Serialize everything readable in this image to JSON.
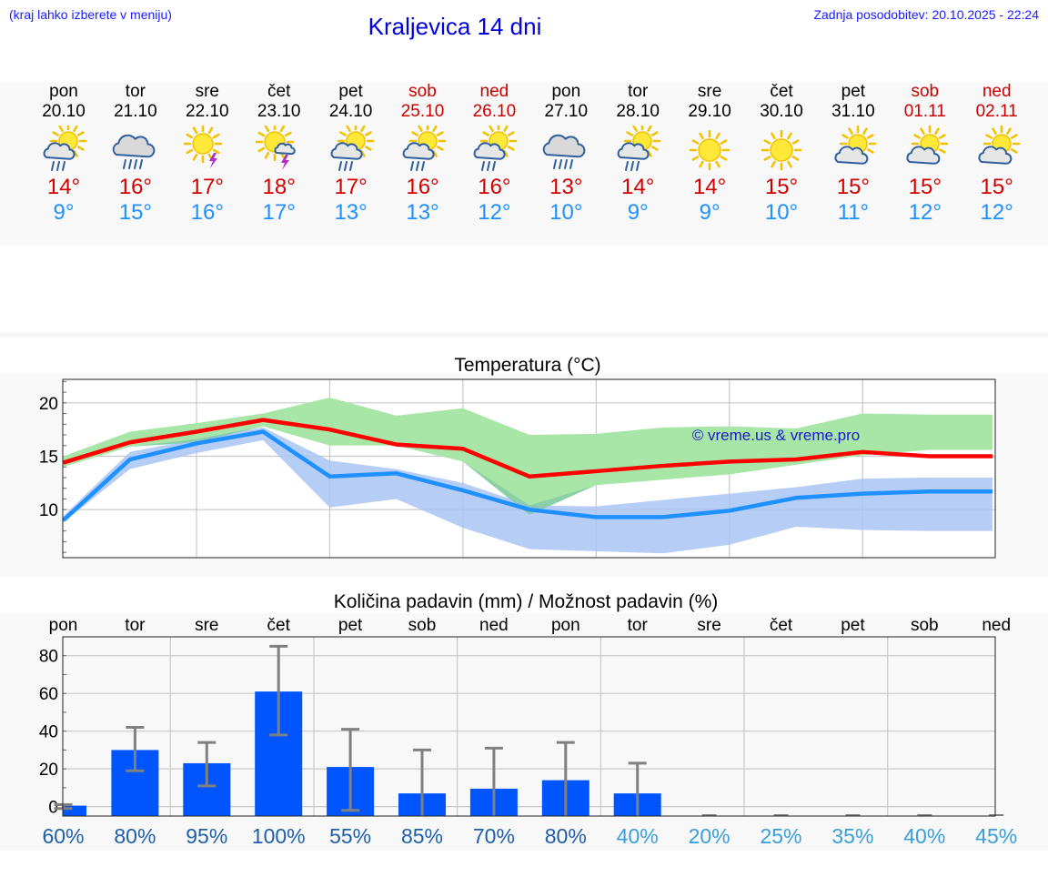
{
  "header": {
    "hint": "(kraj lahko izberete v meniju)",
    "title": "Kraljevica 14 dni",
    "updated": "Zadnja posodobitev: 20.10.2025 - 22:24"
  },
  "colors": {
    "max_line": "#ff0000",
    "min_line": "#1e90ff",
    "max_band": "#a8e6a8",
    "min_band": "#a9c4f5",
    "overlap_band": "#7fc8a5",
    "precip_bar": "#0055ff",
    "error_bar": "#808080",
    "prob_high": "#1e5faa",
    "prob_low": "#3a9edc",
    "weekend": "#cc0000"
  },
  "days": [
    {
      "name": "pon",
      "date": "20.10",
      "icon": "sun-cloud-rain-icon",
      "max": "14°",
      "min": "9°",
      "weekend": false
    },
    {
      "name": "tor",
      "date": "21.10",
      "icon": "cloud-rain-icon",
      "max": "16°",
      "min": "15°",
      "weekend": false
    },
    {
      "name": "sre",
      "date": "22.10",
      "icon": "sun-thunder-icon",
      "max": "17°",
      "min": "16°",
      "weekend": false
    },
    {
      "name": "čet",
      "date": "23.10",
      "icon": "sun-cloud-thunder-icon",
      "max": "18°",
      "min": "17°",
      "weekend": false
    },
    {
      "name": "pet",
      "date": "24.10",
      "icon": "sun-cloud-rain-icon",
      "max": "17°",
      "min": "13°",
      "weekend": false
    },
    {
      "name": "sob",
      "date": "25.10",
      "icon": "sun-cloud-rain-icon",
      "max": "16°",
      "min": "13°",
      "weekend": true
    },
    {
      "name": "ned",
      "date": "26.10",
      "icon": "sun-cloud-rain-icon",
      "max": "16°",
      "min": "12°",
      "weekend": true
    },
    {
      "name": "pon",
      "date": "27.10",
      "icon": "cloud-rain-icon",
      "max": "13°",
      "min": "10°",
      "weekend": false
    },
    {
      "name": "tor",
      "date": "28.10",
      "icon": "sun-cloud-rain-icon",
      "max": "14°",
      "min": "9°",
      "weekend": false
    },
    {
      "name": "sre",
      "date": "29.10",
      "icon": "sun-icon",
      "max": "14°",
      "min": "9°",
      "weekend": false
    },
    {
      "name": "čet",
      "date": "30.10",
      "icon": "sun-icon",
      "max": "15°",
      "min": "10°",
      "weekend": false
    },
    {
      "name": "pet",
      "date": "31.10",
      "icon": "sun-cloud-icon",
      "max": "15°",
      "min": "11°",
      "weekend": false
    },
    {
      "name": "sob",
      "date": "01.11",
      "icon": "sun-cloud-icon",
      "max": "15°",
      "min": "12°",
      "weekend": true
    },
    {
      "name": "ned",
      "date": "02.11",
      "icon": "sun-cloud-icon",
      "max": "15°",
      "min": "12°",
      "weekend": true
    }
  ],
  "chart_data": [
    {
      "type": "line",
      "title": "Temperatura (°C)",
      "watermark": "© vreme.us & vreme.pro",
      "ylim": [
        5.5,
        22.2
      ],
      "yticks": [
        10,
        15,
        20
      ],
      "grid": true,
      "x": [
        0,
        1,
        2,
        3,
        4,
        5,
        6,
        7,
        8,
        9,
        10,
        11,
        12,
        13,
        13.95
      ],
      "series": [
        {
          "key": "max",
          "values": [
            14.4,
            16.3,
            17.3,
            18.4,
            17.5,
            16.1,
            15.7,
            13.1,
            13.6,
            14.1,
            14.5,
            14.7,
            15.4,
            15.0,
            15.0
          ]
        },
        {
          "key": "min",
          "values": [
            9.0,
            14.7,
            16.2,
            17.3,
            13.1,
            13.4,
            11.8,
            10.0,
            9.3,
            9.3,
            9.9,
            11.1,
            11.5,
            11.7,
            11.7
          ]
        }
      ],
      "bands": [
        {
          "key": "max",
          "low": [
            14.0,
            15.9,
            16.3,
            17.8,
            16.0,
            16.0,
            14.5,
            9.5,
            12.3,
            12.8,
            13.3,
            14.2,
            15.1,
            15.6,
            15.6
          ],
          "high": [
            15.0,
            17.3,
            18.1,
            19.0,
            20.5,
            18.8,
            19.5,
            17.0,
            17.1,
            17.7,
            17.8,
            17.6,
            19.0,
            18.9,
            18.9
          ]
        },
        {
          "key": "min",
          "low": [
            8.8,
            13.8,
            15.3,
            16.5,
            10.2,
            11.0,
            8.3,
            6.3,
            6.1,
            5.9,
            6.7,
            8.4,
            8.1,
            8.0,
            8.0
          ],
          "high": [
            9.4,
            15.4,
            16.6,
            17.7,
            14.6,
            13.8,
            12.5,
            10.4,
            10.3,
            10.9,
            11.5,
            12.1,
            12.9,
            13.0,
            13.0
          ]
        }
      ]
    },
    {
      "type": "bar",
      "title": "Količina padavin (mm) / Možnost padavin (%)",
      "categories": [
        "pon",
        "tor",
        "sre",
        "čet",
        "pet",
        "sob",
        "ned",
        "pon",
        "tor",
        "sre",
        "čet",
        "pet",
        "sob",
        "ned"
      ],
      "ylim": [
        -5,
        90
      ],
      "yticks": [
        0,
        20,
        40,
        60,
        80
      ],
      "grid": true,
      "values": [
        0.5,
        30,
        23,
        61,
        21,
        7,
        9.5,
        14,
        7,
        0,
        0,
        0,
        0,
        0
      ],
      "err_low": [
        -1,
        19,
        11,
        38,
        -2,
        -5,
        -5,
        -5,
        -5,
        -5,
        -5,
        -5,
        -5,
        -5
      ],
      "err_high": [
        1,
        42,
        34,
        85,
        41,
        30,
        31,
        34,
        23,
        -5,
        -5,
        -5,
        -5,
        -5
      ],
      "probabilities": [
        "60%",
        "80%",
        "95%",
        "100%",
        "55%",
        "85%",
        "70%",
        "80%",
        "40%",
        "20%",
        "25%",
        "35%",
        "40%",
        "45%"
      ]
    }
  ]
}
